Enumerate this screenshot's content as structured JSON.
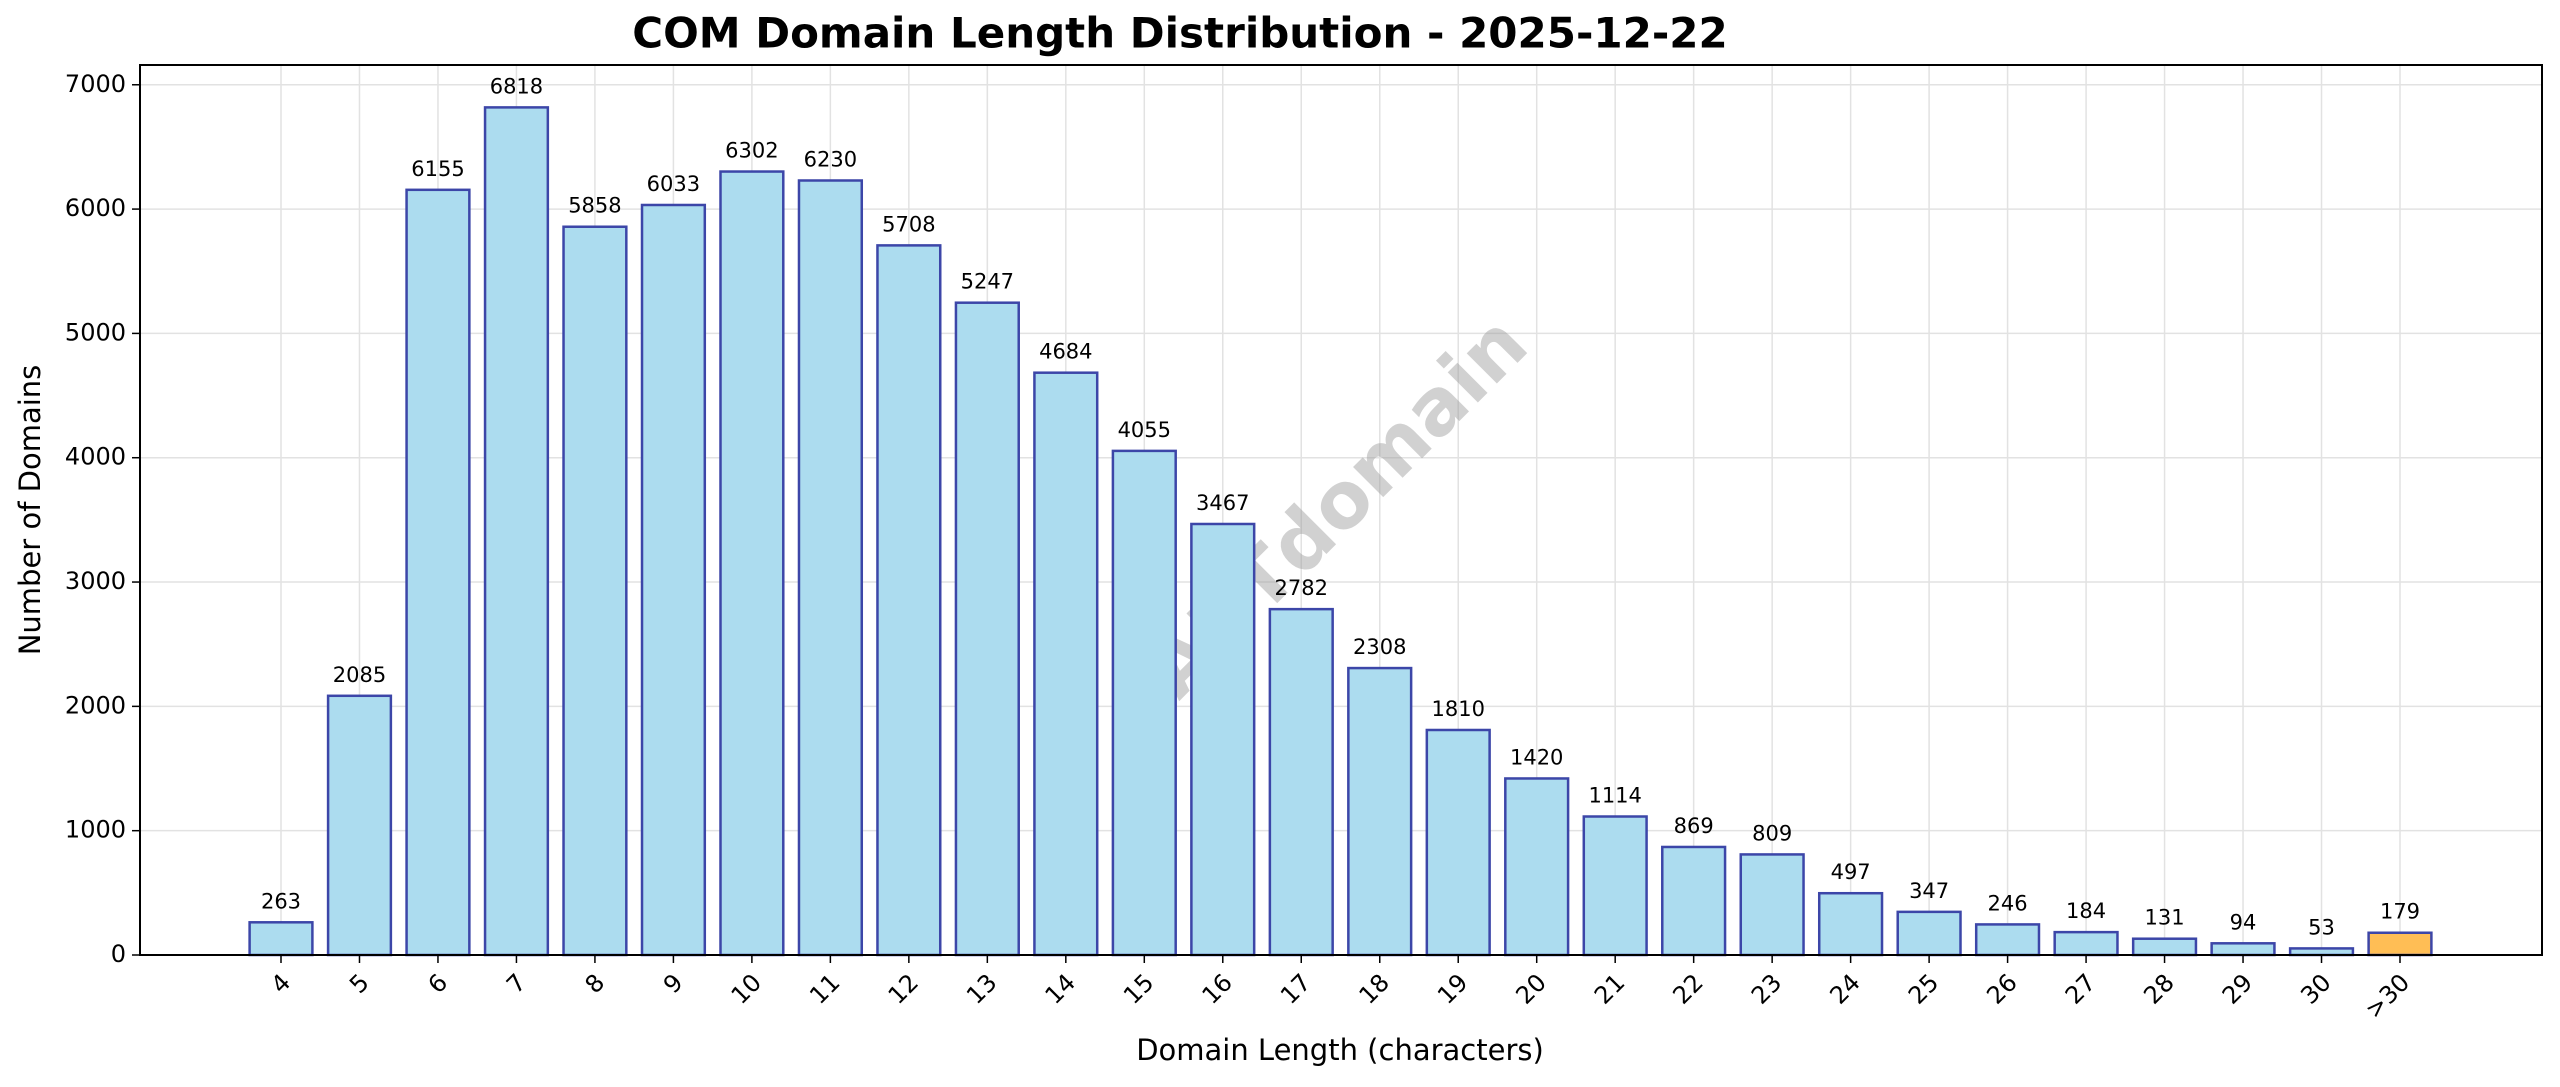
{
  "chart_data": {
    "type": "bar",
    "title": "COM Domain Length Distribution - 2025-12-22",
    "x_label": "Domain Length (characters)",
    "y_label": "Number of Domains",
    "watermark": "ABTdomain",
    "categories": [
      "4",
      "5",
      "6",
      "7",
      "8",
      "9",
      "10",
      "11",
      "12",
      "13",
      "14",
      "15",
      "16",
      "17",
      "18",
      "19",
      "20",
      "21",
      "22",
      "23",
      "24",
      "25",
      "26",
      "27",
      "28",
      "29",
      "30",
      ">30"
    ],
    "values": [
      263,
      2085,
      6155,
      6818,
      5858,
      6033,
      6302,
      6230,
      5708,
      5247,
      4684,
      4055,
      3467,
      2782,
      2308,
      1810,
      1420,
      1114,
      869,
      809,
      497,
      347,
      246,
      184,
      131,
      94,
      53,
      179
    ],
    "colors": [
      "#acdcef",
      "#acdcef",
      "#acdcef",
      "#acdcef",
      "#acdcef",
      "#acdcef",
      "#acdcef",
      "#acdcef",
      "#acdcef",
      "#acdcef",
      "#acdcef",
      "#acdcef",
      "#acdcef",
      "#acdcef",
      "#acdcef",
      "#acdcef",
      "#acdcef",
      "#acdcef",
      "#acdcef",
      "#acdcef",
      "#acdcef",
      "#acdcef",
      "#acdcef",
      "#acdcef",
      "#acdcef",
      "#acdcef",
      "#acdcef",
      "#ffbe55"
    ],
    "edge_color": "#3c46a8",
    "ylim": [
      0,
      7159
    ],
    "yticks": [
      0,
      1000,
      2000,
      3000,
      4000,
      5000,
      6000,
      7000
    ],
    "grid": true
  }
}
